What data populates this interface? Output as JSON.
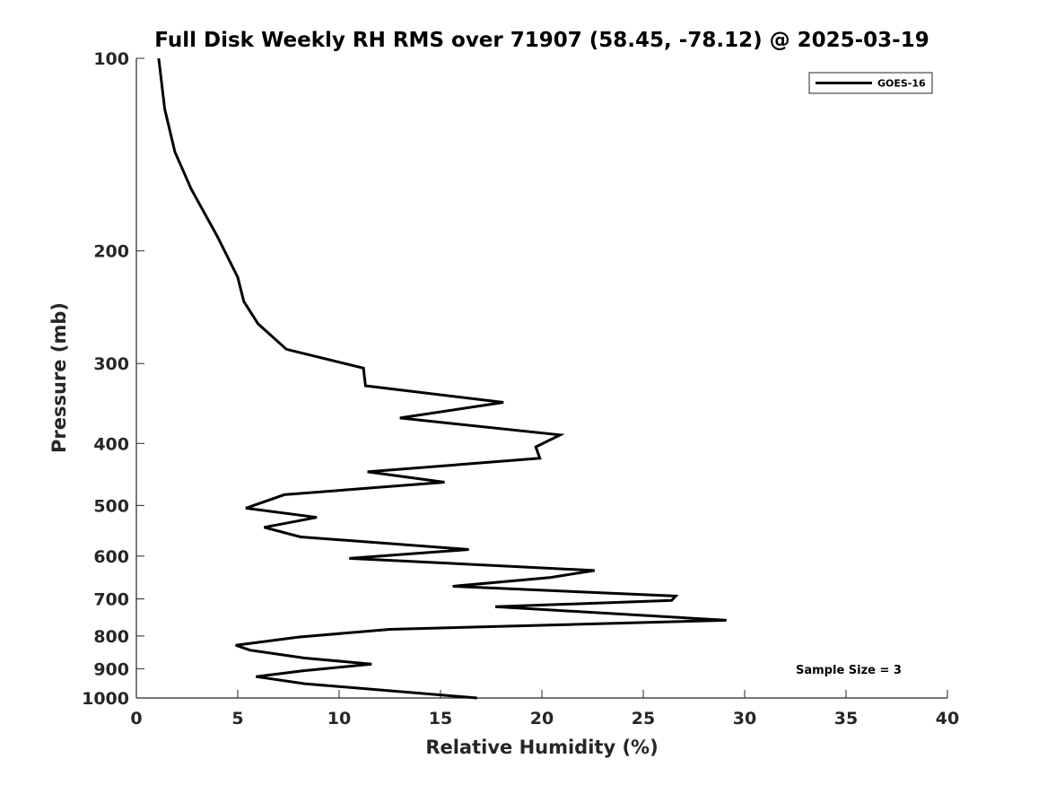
{
  "chart_data": {
    "type": "line",
    "title": "Full Disk Weekly RH RMS over 71907 (58.45, -78.12) @ 2025-03-19",
    "xlabel": "Relative Humidity (%)",
    "ylabel": "Pressure (mb)",
    "xlim": [
      0,
      40
    ],
    "ylim": [
      100,
      1000
    ],
    "yscale": "log",
    "y_reversed": true,
    "xticks": [
      0,
      5,
      10,
      15,
      20,
      25,
      30,
      35,
      40
    ],
    "yticks": [
      100,
      200,
      300,
      400,
      500,
      600,
      700,
      800,
      900,
      1000
    ],
    "grid": false,
    "legend_position": "top-right",
    "annotation": "Sample Size = 3",
    "series": [
      {
        "name": "GOES-16",
        "color": "#000000",
        "x": [
          1.1,
          1.4,
          1.9,
          2.7,
          4.0,
          5.0,
          5.3,
          6.0,
          7.4,
          11.2,
          11.3,
          18.1,
          13.0,
          20.9,
          19.7,
          19.9,
          11.4,
          15.2,
          7.3,
          5.4,
          8.9,
          6.3,
          8.1,
          16.4,
          10.5,
          22.6,
          20.4,
          15.6,
          26.6,
          26.4,
          17.7,
          29.1,
          12.5,
          8.0,
          4.9,
          5.6,
          8.3,
          11.6,
          8.2,
          5.9,
          8.3,
          16.8
        ],
        "y": [
          100,
          120,
          140,
          160,
          190,
          220,
          240,
          260,
          285,
          305,
          325,
          345,
          365,
          388,
          405,
          422,
          443,
          460,
          481,
          505,
          522,
          541,
          560,
          586,
          605,
          632,
          648,
          669,
          693,
          704,
          720,
          756,
          781,
          803,
          827,
          842,
          866,
          885,
          907,
          926,
          950,
          1000
        ]
      }
    ]
  }
}
